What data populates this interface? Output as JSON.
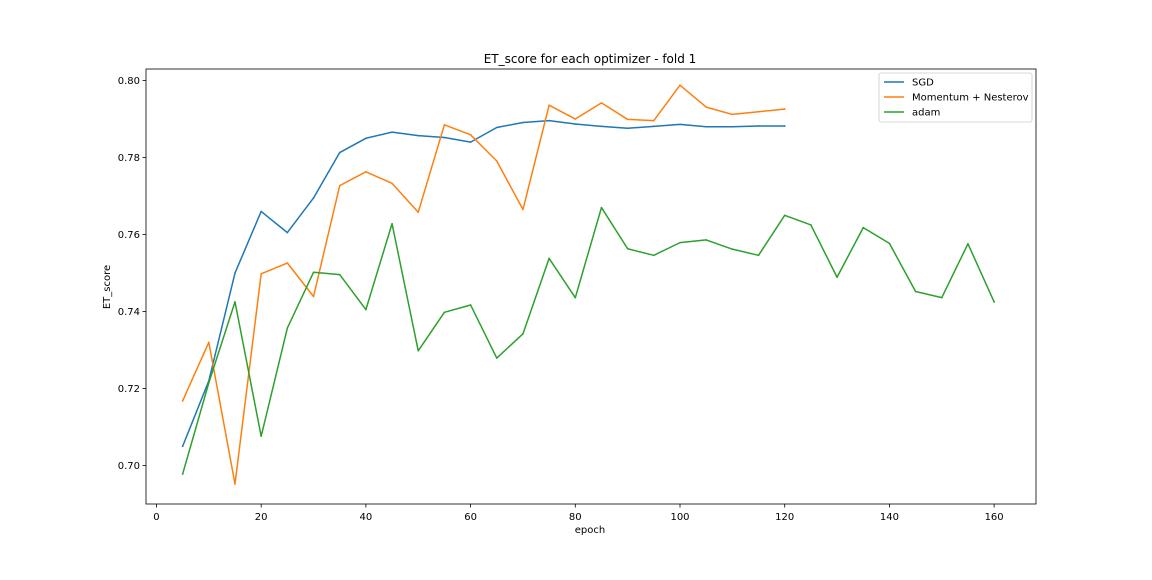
{
  "chart_data": {
    "type": "line",
    "title": "ET_score for each optimizer - fold 1",
    "xlabel": "epoch",
    "ylabel": "ET_score",
    "xlim": [
      -2,
      168
    ],
    "ylim": [
      0.69,
      0.803
    ],
    "xticks": [
      0,
      20,
      40,
      60,
      80,
      100,
      120,
      140,
      160
    ],
    "yticks": [
      0.7,
      0.72,
      0.74,
      0.76,
      0.78,
      0.8
    ],
    "ytick_labels": [
      "0.70",
      "0.72",
      "0.74",
      "0.76",
      "0.78",
      "0.80"
    ],
    "grid": false,
    "legend_position": "upper right",
    "series": [
      {
        "name": "SGD",
        "color": "#1f77b4",
        "x": [
          5,
          10,
          15,
          20,
          25,
          30,
          35,
          40,
          45,
          50,
          55,
          60,
          65,
          70,
          75,
          80,
          85,
          90,
          95,
          100,
          105,
          110,
          115,
          120
        ],
        "y": [
          0.705,
          0.722,
          0.75,
          0.766,
          0.7605,
          0.7695,
          0.7813,
          0.785,
          0.7866,
          0.7857,
          0.7852,
          0.784,
          0.7878,
          0.7891,
          0.7896,
          0.7887,
          0.7881,
          0.7876,
          0.7881,
          0.7886,
          0.788,
          0.788,
          0.7882,
          0.7882
        ]
      },
      {
        "name": "Momentum + Nesterov",
        "color": "#ff7f0e",
        "x": [
          5,
          10,
          15,
          20,
          25,
          30,
          35,
          40,
          45,
          50,
          55,
          60,
          65,
          70,
          75,
          80,
          85,
          90,
          95,
          100,
          105,
          110,
          115,
          120
        ],
        "y": [
          0.7168,
          0.732,
          0.6952,
          0.7498,
          0.7526,
          0.7439,
          0.7727,
          0.7763,
          0.7733,
          0.7658,
          0.7885,
          0.7859,
          0.7791,
          0.7665,
          0.7936,
          0.79,
          0.7942,
          0.7899,
          0.7896,
          0.7988,
          0.7931,
          0.7912,
          0.7919,
          0.7926
        ]
      },
      {
        "name": "adam",
        "color": "#2ca02c",
        "x": [
          5,
          10,
          15,
          20,
          25,
          30,
          35,
          40,
          45,
          50,
          55,
          60,
          65,
          70,
          75,
          80,
          85,
          90,
          95,
          100,
          105,
          110,
          115,
          120,
          125,
          130,
          135,
          140,
          145,
          150,
          155,
          160
        ],
        "y": [
          0.6978,
          0.7215,
          0.7425,
          0.7076,
          0.7357,
          0.7502,
          0.7496,
          0.7405,
          0.7628,
          0.7298,
          0.7398,
          0.7417,
          0.7279,
          0.7342,
          0.7538,
          0.7436,
          0.767,
          0.7563,
          0.7546,
          0.7579,
          0.7586,
          0.7562,
          0.7546,
          0.765,
          0.7625,
          0.7489,
          0.7618,
          0.7577,
          0.7452,
          0.7436,
          0.7576,
          0.7425
        ]
      }
    ]
  }
}
